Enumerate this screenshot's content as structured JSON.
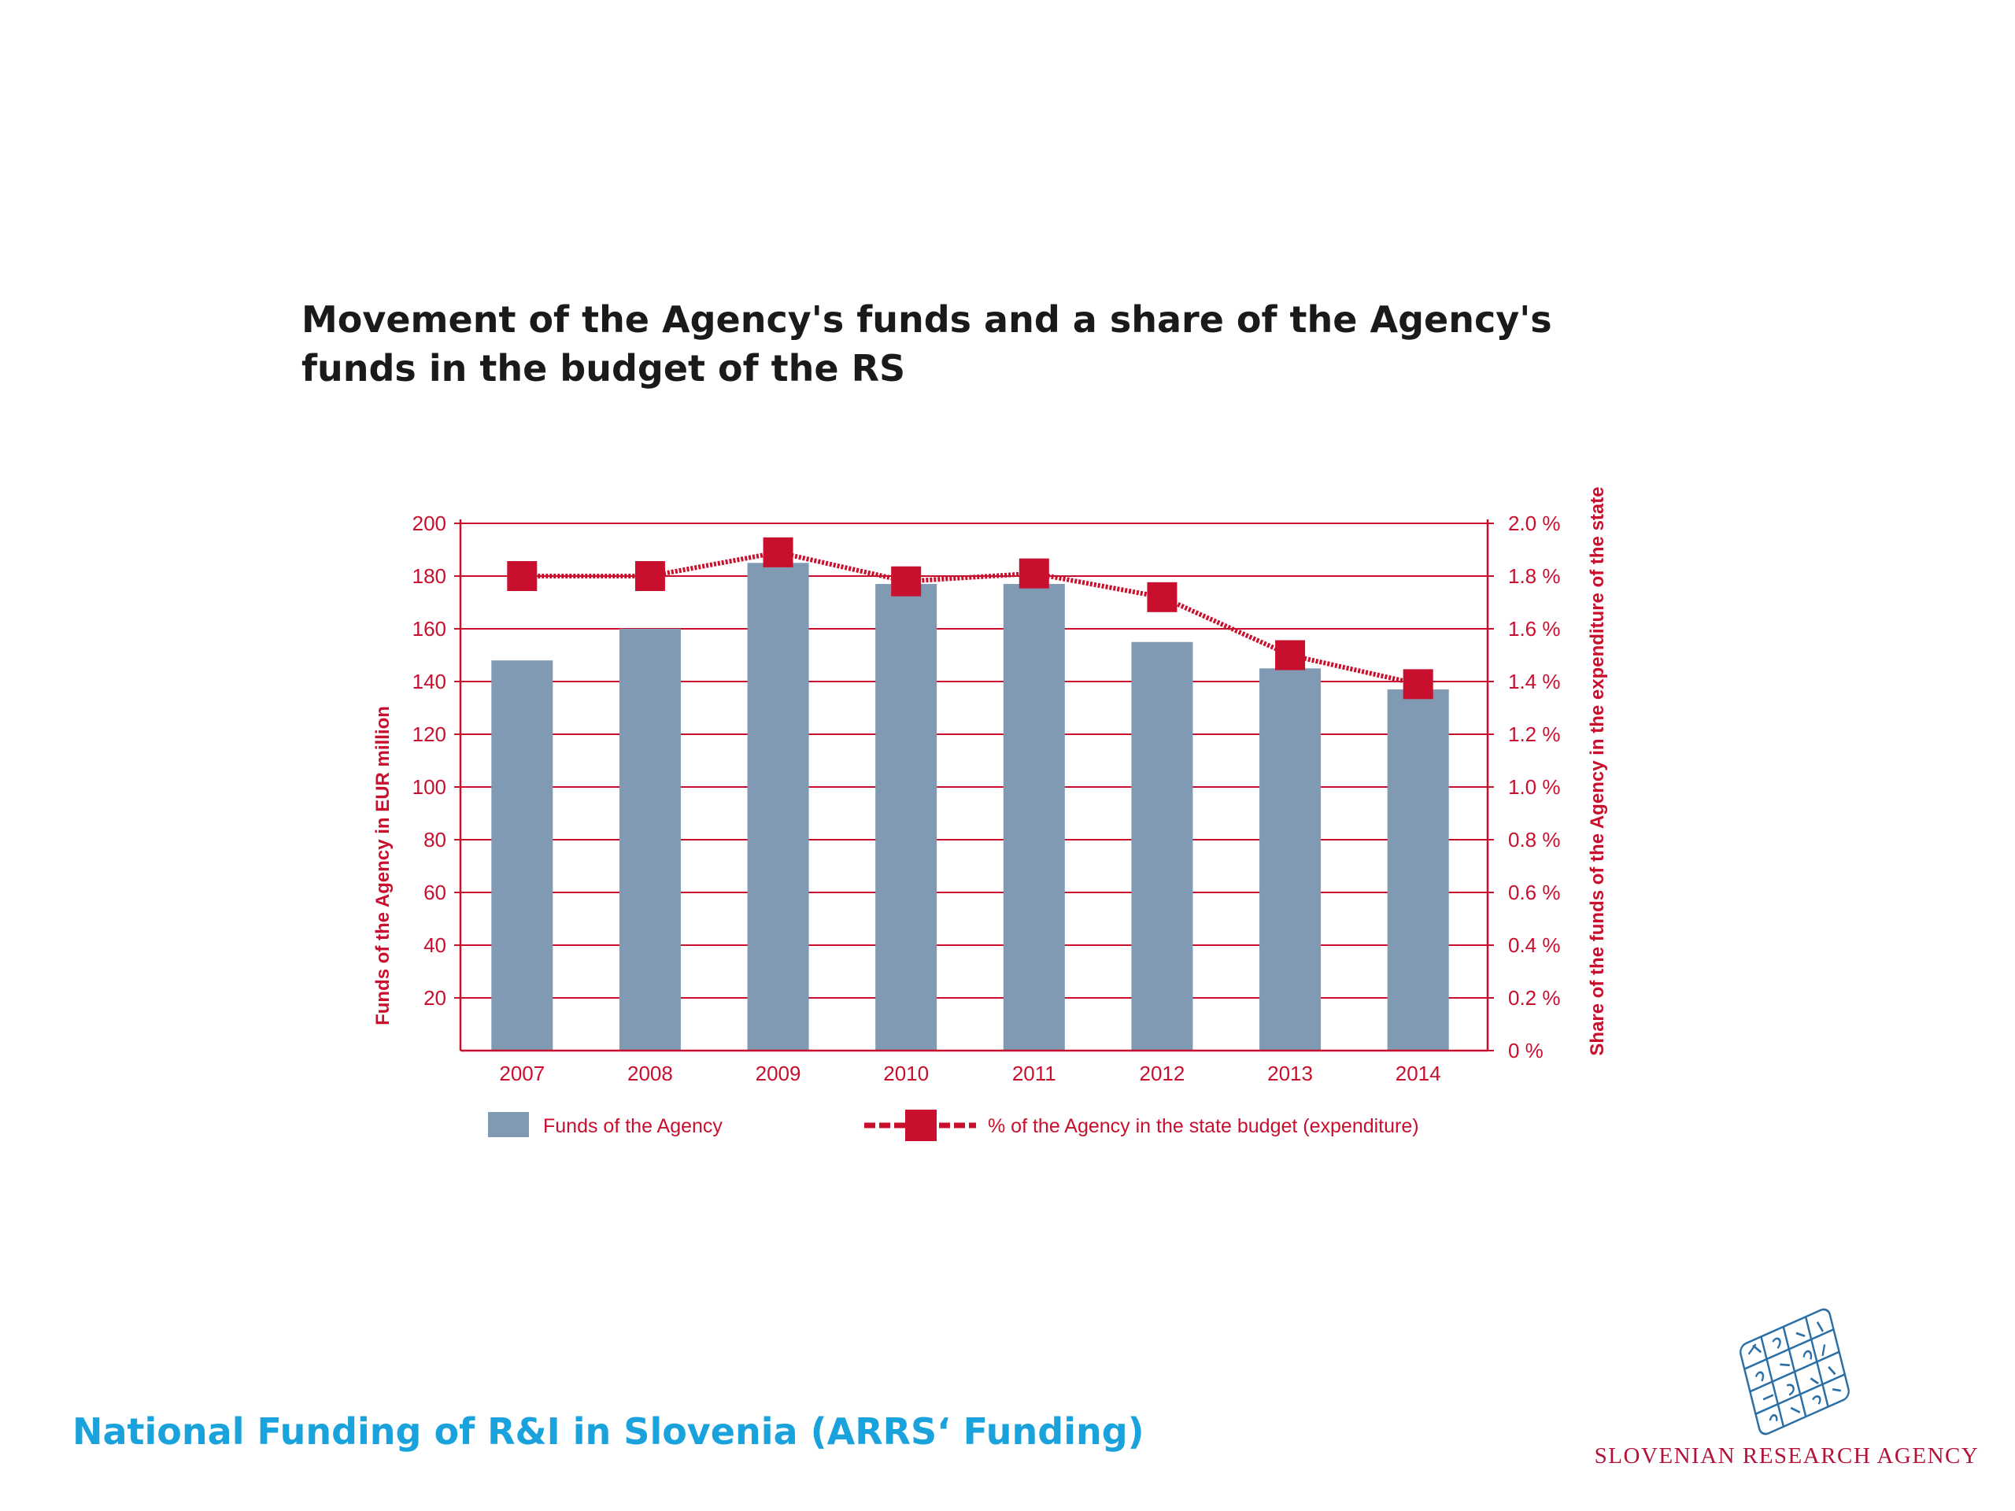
{
  "title": "Movement of the Agency's funds and a share of the Agency's funds in the budget of the RS",
  "footer": {
    "text": "National Funding of R&I in Slovenia (ARRS‘ Funding)"
  },
  "logo": {
    "text": "SLOVENIAN RESEARCH AGENCY",
    "icon": "globe-grid-icon"
  },
  "colors": {
    "bar": "#7f9ab2",
    "accent": "#c8102e",
    "title": "#1a1a1a",
    "footer": "#19a2dc"
  },
  "chart_data": {
    "type": "bar",
    "categories": [
      "2007",
      "2008",
      "2009",
      "2010",
      "2011",
      "2012",
      "2013",
      "2014"
    ],
    "series": [
      {
        "name": "Funds of the Agency",
        "type": "bar",
        "axis": "left",
        "values": [
          148,
          160,
          185,
          177,
          177,
          155,
          145,
          137
        ]
      },
      {
        "name": "% of the Agency in the state budget (expenditure)",
        "type": "line",
        "axis": "right",
        "values": [
          1.8,
          1.8,
          1.89,
          1.78,
          1.81,
          1.72,
          1.5,
          1.39
        ]
      }
    ],
    "ylabel": "Funds of the Agency in EUR million",
    "ylabel_right": "Share of the funds of the Agency in the expenditure of the state",
    "ylim": [
      0,
      200
    ],
    "ylim_right": [
      0,
      2.0
    ],
    "yticks": [
      "20",
      "40",
      "60",
      "80",
      "100",
      "120",
      "140",
      "160",
      "180",
      "200"
    ],
    "yticks_right": [
      "0 %",
      "0.2 %",
      "0.4 %",
      "0.6 %",
      "0.8 %",
      "1.0 %",
      "1.2 %",
      "1.4 %",
      "1.6 %",
      "1.8 %",
      "2.0 %"
    ],
    "grid": true,
    "legend": "bottom"
  }
}
